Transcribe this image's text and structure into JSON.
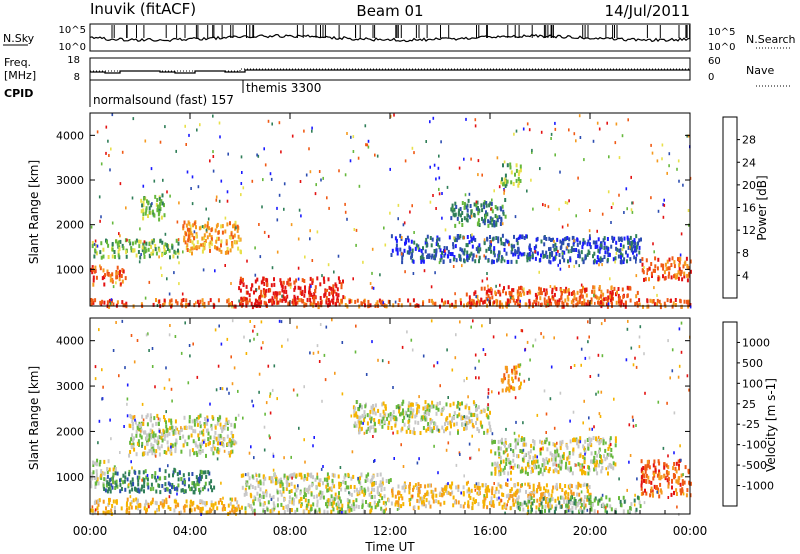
{
  "header": {
    "station": "Inuvik (fitACF)",
    "beam": "Beam 01",
    "date": "14/Jul/2011"
  },
  "strip": {
    "nsky_label": "N.Sky",
    "nsky_ticks": [
      "10^5",
      "10^0"
    ],
    "nsearch_label": "N.Search",
    "nsearch_ticks": [
      "10^5",
      "10^0"
    ],
    "freq_label_1": "Freq.",
    "freq_label_2": "[MHz]",
    "freq_ticks": [
      "18",
      "8"
    ],
    "nave_label": "Nave",
    "nave_ticks": [
      "60",
      "0"
    ],
    "cpid_label": "CPID",
    "cpid_annotations": [
      "normalsound (fast) 157",
      "themis 3300"
    ]
  },
  "colors": {
    "power": [
      "#1a1aff",
      "#2c4db0",
      "#2f7e58",
      "#66b83c",
      "#e8e04a",
      "#f59a1e",
      "#f05a14",
      "#e31212"
    ],
    "velocity": [
      "#e31212",
      "#f05a14",
      "#f59a1e",
      "#f5b400",
      "#c8c8c8",
      "#66b83c",
      "#2f7e58",
      "#2c4db0",
      "#1a1aff"
    ]
  },
  "chart_data": [
    {
      "type": "heatmap",
      "title": "Power",
      "ylabel": "Slant Range [km]",
      "xlabel": "Time UT",
      "ylim": [
        180,
        4500
      ],
      "y_ticks": [
        1000,
        2000,
        3000,
        4000
      ],
      "x_tick_labels": [
        "00:00",
        "04:00",
        "08:00",
        "12:00",
        "16:00",
        "20:00",
        "00:00"
      ],
      "colorbar_label": "Power [dB]",
      "colorbar_ticks": [
        "4",
        "8",
        "12",
        "16",
        "20",
        "24",
        "28"
      ],
      "regions": [
        {
          "t": [
            0,
            24
          ],
          "r": [
            200,
            360
          ],
          "level": 6
        },
        {
          "t": [
            0,
            1.4
          ],
          "r": [
            700,
            1100
          ],
          "level": 6
        },
        {
          "t": [
            0,
            3.6
          ],
          "r": [
            1300,
            1700
          ],
          "level": 3
        },
        {
          "t": [
            2,
            3
          ],
          "r": [
            2100,
            2700
          ],
          "level": 3
        },
        {
          "t": [
            3.6,
            6
          ],
          "r": [
            1400,
            2100
          ],
          "level": 5
        },
        {
          "t": [
            5.9,
            10.1
          ],
          "r": [
            230,
            850
          ],
          "level": 7
        },
        {
          "t": [
            14.4,
            16.6
          ],
          "r": [
            2000,
            2600
          ],
          "level": 2
        },
        {
          "t": [
            16.4,
            17.2
          ],
          "r": [
            2900,
            3400
          ],
          "level": 3
        },
        {
          "t": [
            15,
            22
          ],
          "r": [
            250,
            650
          ],
          "level": 6
        },
        {
          "t": [
            22,
            24
          ],
          "r": [
            800,
            1300
          ],
          "level": 6
        },
        {
          "t": [
            12,
            22
          ],
          "r": [
            1200,
            1800
          ],
          "level": 1
        }
      ]
    },
    {
      "type": "heatmap",
      "title": "Velocity",
      "ylabel": "Slant Range [km]",
      "xlabel": "Time UT",
      "ylim": [
        180,
        4500
      ],
      "y_ticks": [
        1000,
        2000,
        3000,
        4000
      ],
      "x_tick_labels": [
        "00:00",
        "04:00",
        "08:00",
        "12:00",
        "16:00",
        "20:00",
        "00:00"
      ],
      "colorbar_label": "Velocity [m s-1]",
      "colorbar_ticks": [
        "1000",
        "500",
        "100",
        "25",
        "-25",
        "-100",
        "-500",
        "-1000"
      ],
      "regions": [
        {
          "t": [
            0,
            1
          ],
          "r": [
            800,
            1400
          ],
          "level": 4
        },
        {
          "t": [
            0,
            6
          ],
          "r": [
            220,
            550
          ],
          "level": 3
        },
        {
          "t": [
            0.5,
            5
          ],
          "r": [
            700,
            1200
          ],
          "level": 6
        },
        {
          "t": [
            1.5,
            5.8
          ],
          "r": [
            1500,
            2400
          ],
          "level": 4
        },
        {
          "t": [
            6,
            12
          ],
          "r": [
            250,
            1100
          ],
          "level": 4
        },
        {
          "t": [
            10.5,
            16
          ],
          "r": [
            2000,
            2700
          ],
          "level": 4
        },
        {
          "t": [
            12,
            20
          ],
          "r": [
            350,
            900
          ],
          "level": 3
        },
        {
          "t": [
            16,
            21
          ],
          "r": [
            1100,
            1900
          ],
          "level": 4
        },
        {
          "t": [
            17,
            22
          ],
          "r": [
            250,
            600
          ],
          "level": 5
        },
        {
          "t": [
            22,
            24
          ],
          "r": [
            600,
            1400
          ],
          "level": 1
        },
        {
          "t": [
            16.4,
            17.2
          ],
          "r": [
            2900,
            3500
          ],
          "level": 2
        }
      ]
    }
  ]
}
